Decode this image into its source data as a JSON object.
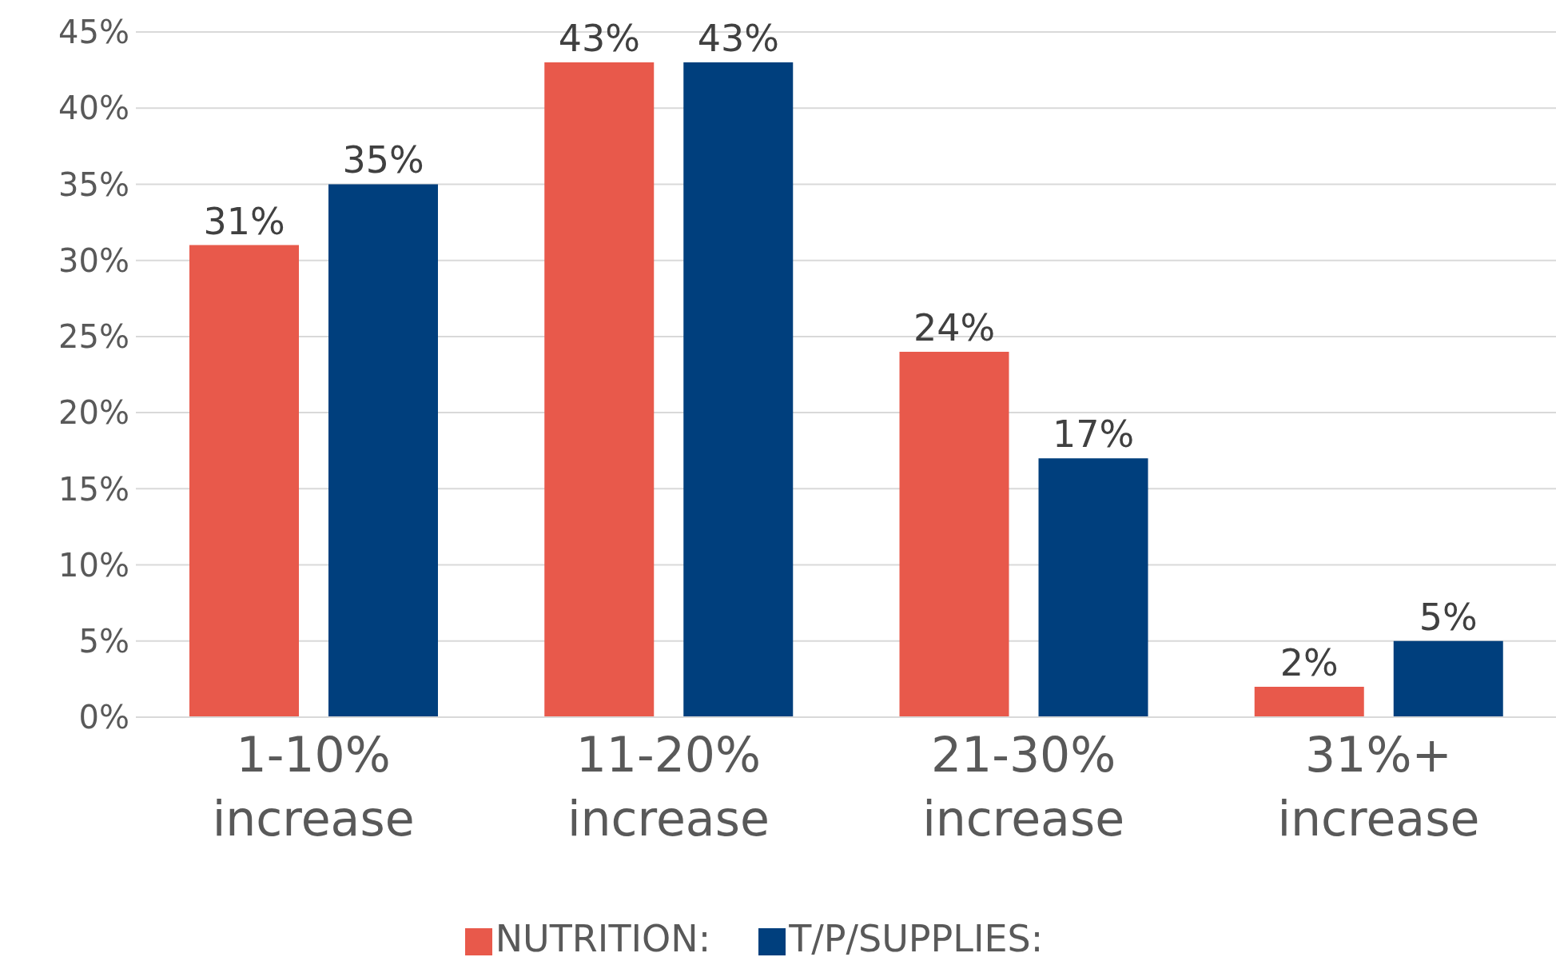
{
  "chart_data": {
    "type": "bar",
    "categories": [
      "1-10% increase",
      "11-20% increase",
      "21-30% increase",
      "31%+ increase"
    ],
    "series": [
      {
        "name": "NUTRITION:",
        "color": "#e8594b",
        "values": [
          31,
          43,
          24,
          2
        ],
        "value_labels": [
          "31%",
          "43%",
          "24%",
          "2%"
        ]
      },
      {
        "name": "T/P/SUPPLIES:",
        "color": "#003f7d",
        "values": [
          35,
          43,
          17,
          5
        ],
        "value_labels": [
          "35%",
          "43%",
          "17%",
          "5%"
        ]
      }
    ],
    "ylim": [
      0,
      45
    ],
    "yticks": [
      {
        "value": 0,
        "label": "0%"
      },
      {
        "value": 5,
        "label": "5%"
      },
      {
        "value": 10,
        "label": "10%"
      },
      {
        "value": 15,
        "label": "15%"
      },
      {
        "value": 20,
        "label": "20%"
      },
      {
        "value": 25,
        "label": "25%"
      },
      {
        "value": 30,
        "label": "30%"
      },
      {
        "value": 35,
        "label": "35%"
      },
      {
        "value": 40,
        "label": "40%"
      },
      {
        "value": 45,
        "label": "45%"
      }
    ],
    "grid": "y",
    "legend": "bottom"
  }
}
